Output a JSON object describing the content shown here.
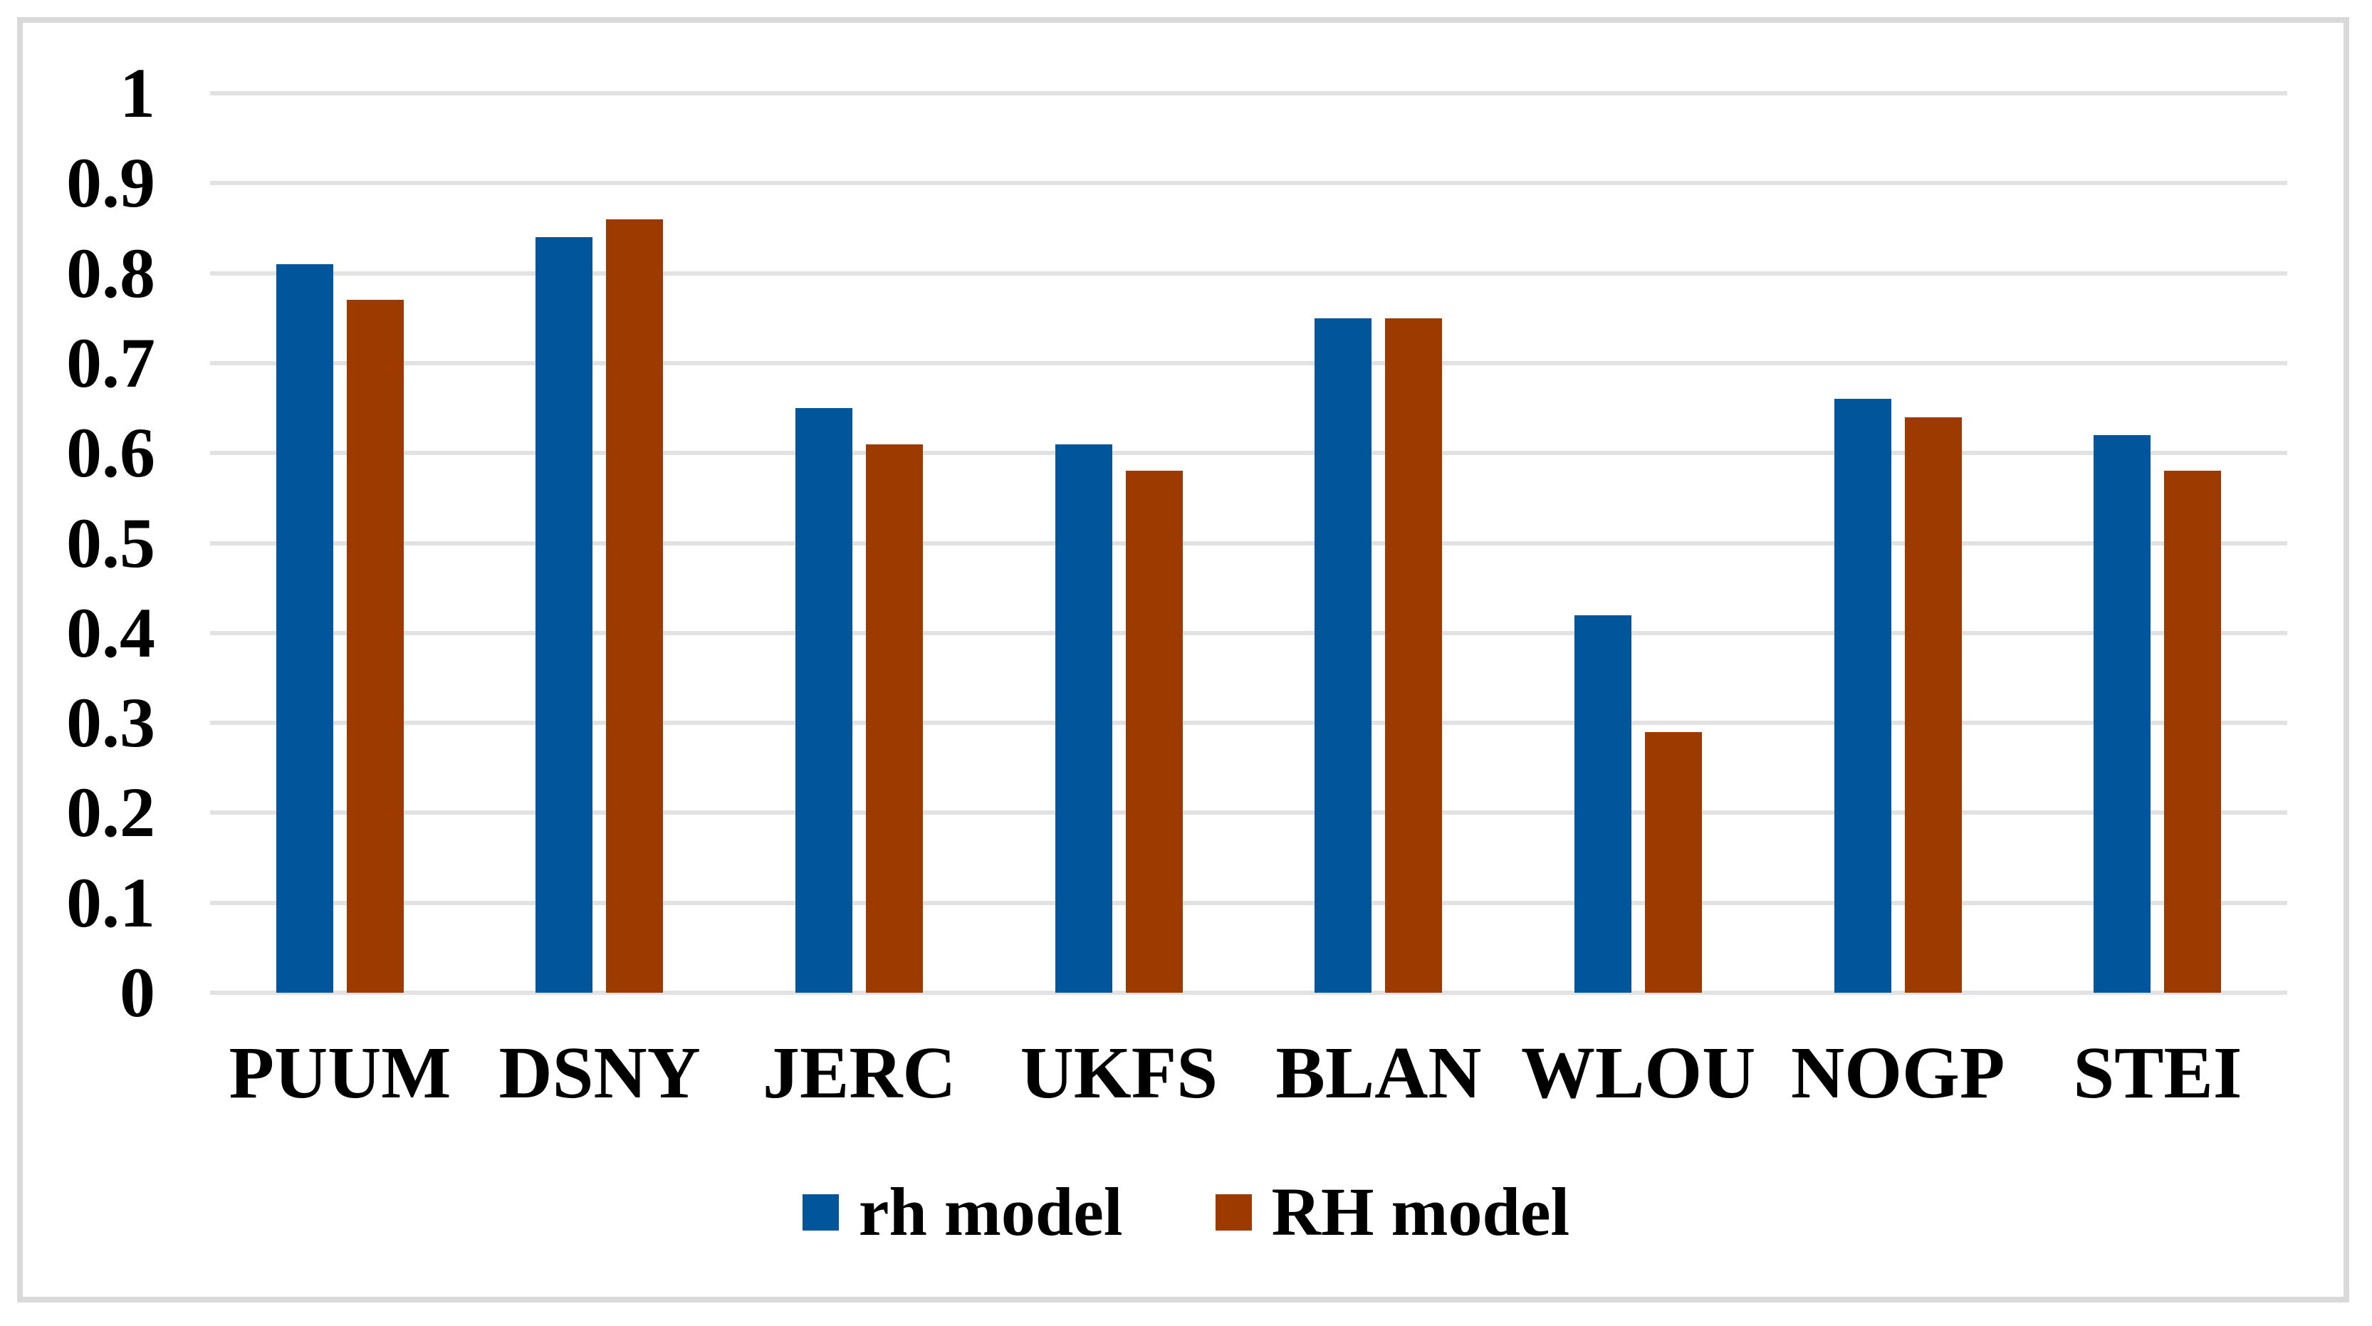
{
  "chart_data": {
    "type": "bar",
    "title": "",
    "categories": [
      "PUUM",
      "DSNY",
      "JERC",
      "UKFS",
      "BLAN",
      "WLOU",
      "NOGP",
      "STEI"
    ],
    "series": [
      {
        "name": "rh model",
        "color": "#00559B",
        "values": [
          0.81,
          0.84,
          0.65,
          0.61,
          0.75,
          0.42,
          0.66,
          0.62
        ]
      },
      {
        "name": "RH model",
        "color": "#9C3A00",
        "values": [
          0.77,
          0.86,
          0.61,
          0.58,
          0.75,
          0.29,
          0.64,
          0.58
        ]
      }
    ],
    "xlabel": "",
    "ylabel": "",
    "ylim": [
      0,
      1
    ],
    "ytick_step": 0.1,
    "ytick_labels": [
      "0",
      "0.1",
      "0.2",
      "0.3",
      "0.4",
      "0.5",
      "0.6",
      "0.7",
      "0.8",
      "0.9",
      "1"
    ],
    "grid": true,
    "legend_position": "bottom"
  },
  "style_colors": {
    "gridline": "#E2E2E2",
    "frame_border": "#D9D9D9",
    "text": "#000000",
    "background": "#FFFFFF"
  }
}
